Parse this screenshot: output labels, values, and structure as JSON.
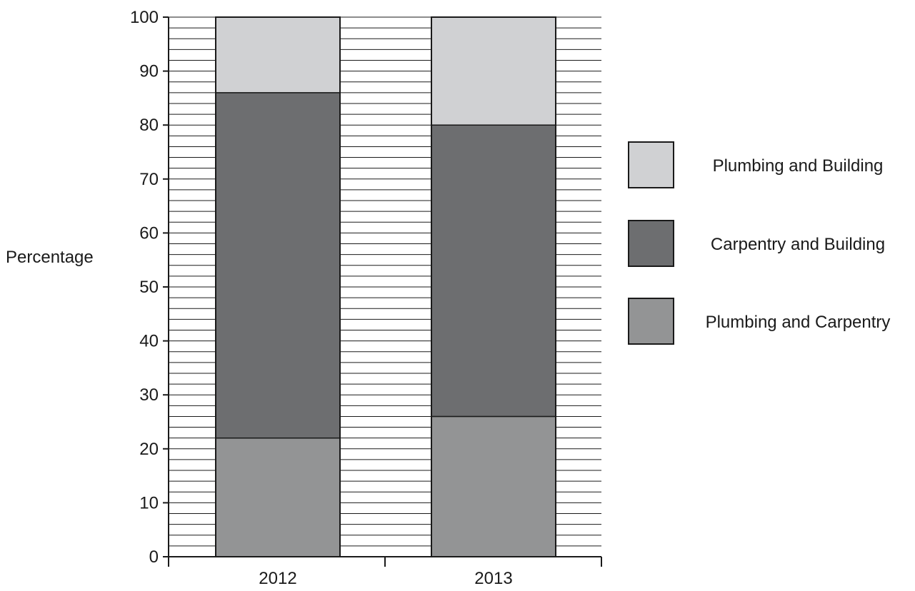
{
  "chart_data": {
    "type": "bar",
    "stacked": true,
    "title": "",
    "xlabel": "",
    "ylabel": "Percentage",
    "categories": [
      "2012",
      "2013"
    ],
    "ylim": [
      0,
      100
    ],
    "yticks": [
      0,
      10,
      20,
      30,
      40,
      50,
      60,
      70,
      80,
      90,
      100
    ],
    "minor_gridline_step": 2,
    "grid": true,
    "legend_position": "right",
    "series": [
      {
        "name": "Plumbing and Carpentry",
        "values": [
          22,
          26
        ],
        "color": "#939495"
      },
      {
        "name": "Carpentry and Building",
        "values": [
          64,
          54
        ],
        "color": "#6d6e70"
      },
      {
        "name": "Plumbing and Building",
        "values": [
          14,
          20
        ],
        "color": "#d0d1d3"
      }
    ],
    "legend_order": [
      "Plumbing and Building",
      "Carpentry and Building",
      "Plumbing and Carpentry"
    ]
  }
}
